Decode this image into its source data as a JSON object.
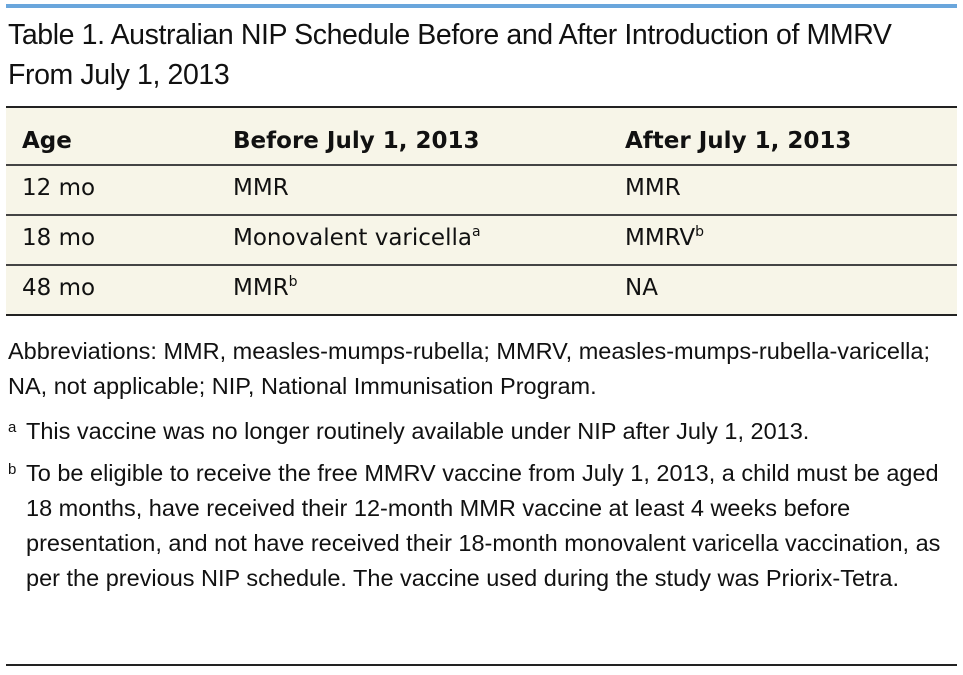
{
  "table": {
    "title": "Table 1. Australian NIP Schedule Before and After Introduction of MMRV From July 1, 2013",
    "headers": [
      "Age",
      "Before July 1, 2013",
      "After July 1, 2013"
    ],
    "rows": [
      {
        "age": "12 mo",
        "before": "MMR",
        "before_sup": "",
        "after": "MMR",
        "after_sup": ""
      },
      {
        "age": "18 mo",
        "before": "Monovalent varicella",
        "before_sup": "a",
        "after": "MMRV",
        "after_sup": "b"
      },
      {
        "age": "48 mo",
        "before": "MMR",
        "before_sup": "b",
        "after": "NA",
        "after_sup": ""
      }
    ]
  },
  "notes": {
    "abbreviations": "Abbreviations: MMR, measles-mumps-rubella; MMRV, measles-mumps-rubella-varicella; NA, not applicable; NIP, National Immunisation Program.",
    "footnotes": [
      {
        "mark": "a",
        "text": "This vaccine was no longer routinely available under NIP after July 1, 2013."
      },
      {
        "mark": "b",
        "text": "To be eligible to receive the free MMRV vaccine from July 1, 2013, a child must be aged 18 months, have received their 12-month MMR vaccine at least 4 weeks before presentation, and not have received their 18-month monovalent varicella vaccination, as per the previous NIP schedule. The vaccine used during the study was Priorix-Tetra."
      }
    ]
  },
  "colors": {
    "accent_rule": "#6aa6dc",
    "table_background": "#f7f5e8",
    "rule": "#222222"
  }
}
